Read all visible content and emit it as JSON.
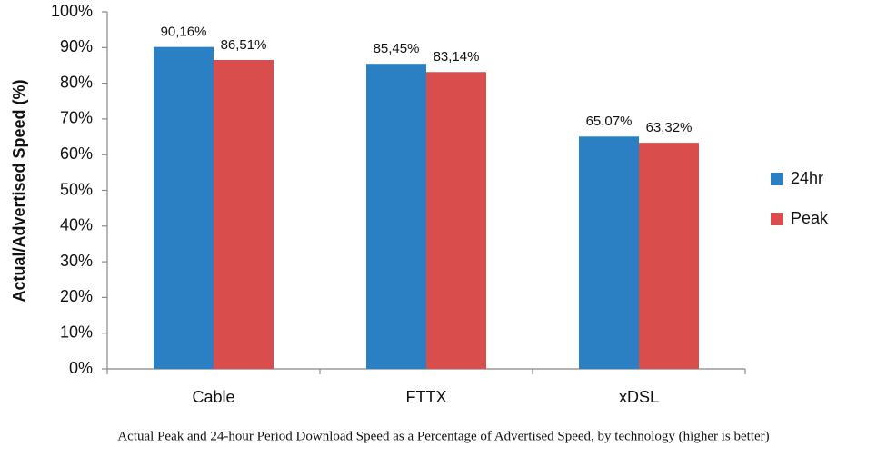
{
  "chart_data": {
    "type": "bar",
    "y_label": "Actual/Advertised Speed (%)",
    "caption": "Actual Peak and 24-hour Period Download Speed as a Percentage of Advertised Speed, by technology (higher is better)",
    "categories": [
      "Cable",
      "FTTX",
      "xDSL"
    ],
    "series": [
      {
        "name": "24hr",
        "color": "#2a80c2",
        "values": [
          90.16,
          85.45,
          65.07
        ],
        "value_labels": [
          "90,16%",
          "85,45%",
          "65,07%"
        ]
      },
      {
        "name": "Peak",
        "color": "#d94d4d",
        "values": [
          86.51,
          83.14,
          63.32
        ],
        "value_labels": [
          "86,51%",
          "83,14%",
          "63,32%"
        ]
      }
    ],
    "ylim": [
      0,
      100
    ],
    "yticks": [
      {
        "value": 0,
        "label": "0%"
      },
      {
        "value": 10,
        "label": "10%"
      },
      {
        "value": 20,
        "label": "20%"
      },
      {
        "value": 30,
        "label": "30%"
      },
      {
        "value": 40,
        "label": "40%"
      },
      {
        "value": 50,
        "label": "50%"
      },
      {
        "value": 60,
        "label": "60%"
      },
      {
        "value": 70,
        "label": "70%"
      },
      {
        "value": 80,
        "label": "80%"
      },
      {
        "value": 90,
        "label": "90%"
      },
      {
        "value": 100,
        "label": "100%"
      }
    ],
    "legend": "right",
    "grid": false
  }
}
